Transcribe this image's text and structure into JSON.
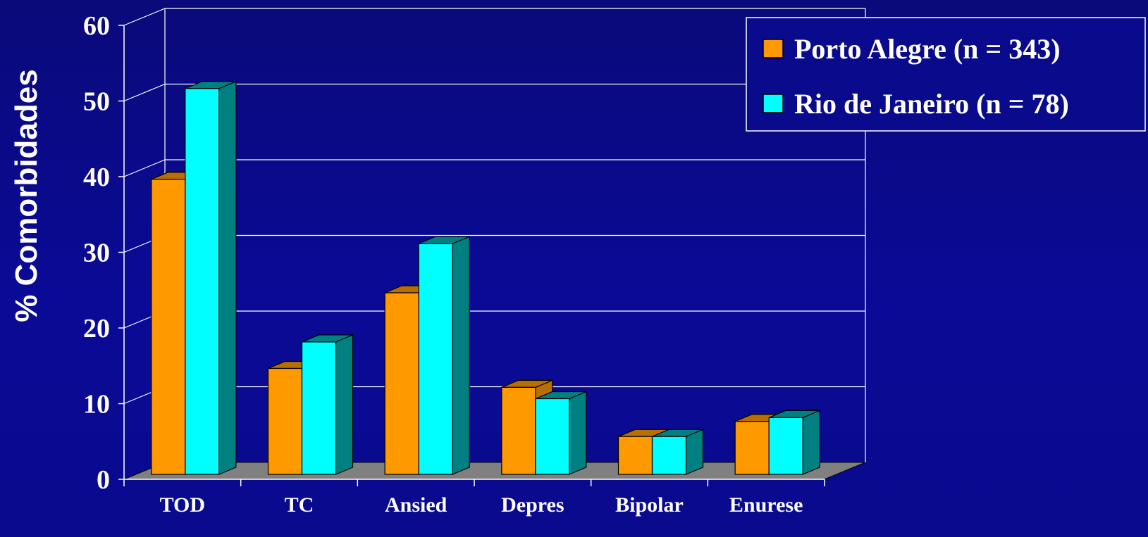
{
  "chart_data": {
    "type": "bar",
    "title": "",
    "xlabel": "",
    "ylabel": "% Comorbidades",
    "ylim": [
      0,
      60
    ],
    "yticks": [
      "0",
      "10",
      "20",
      "30",
      "40",
      "50",
      "60"
    ],
    "categories": [
      "TOD",
      "TC",
      "Ansied",
      "Depres",
      "Bipolar",
      "Enurese"
    ],
    "series": [
      {
        "name": "Porto Alegre (n = 343)",
        "values": [
          39,
          14,
          24,
          11.5,
          5,
          7
        ],
        "color": "#ff9900",
        "side_color": "#b86e00"
      },
      {
        "name": "Rio de Janeiro (n = 78)",
        "values": [
          51,
          17.5,
          30.5,
          10,
          5,
          7.5
        ],
        "color": "#00ffff",
        "side_color": "#008080"
      }
    ],
    "grid": true,
    "legend_position": "top-right",
    "style": "3d-clustered-column",
    "floor_color": "#808080",
    "background_color": "#0a0a8c",
    "text_color": "#ffffff"
  }
}
